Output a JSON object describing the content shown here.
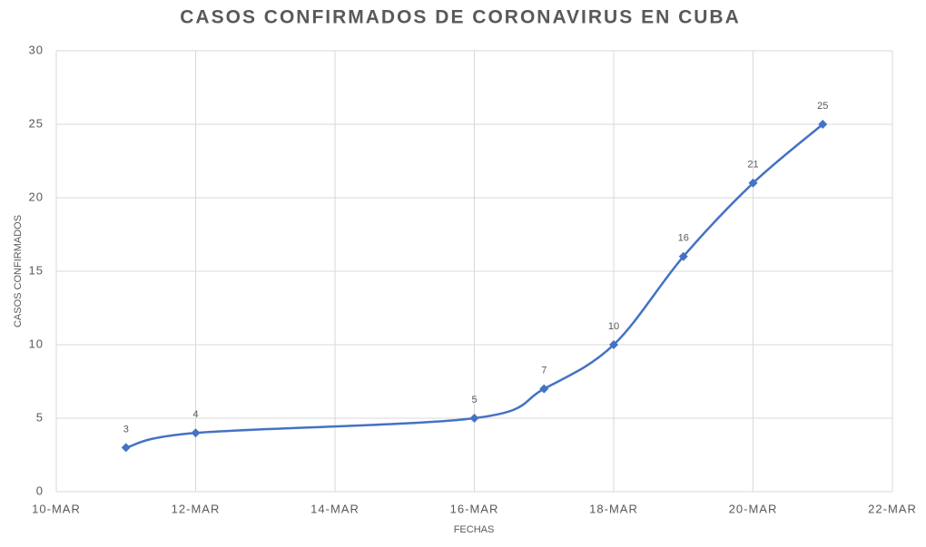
{
  "chart_data": {
    "type": "line",
    "title": "CASOS CONFIRMADOS DE CORONAVIRUS EN CUBA",
    "x_label": "FECHAS",
    "y_label": "CASOS CONFIRMADOS",
    "x": [
      11,
      12,
      16,
      17,
      18,
      19,
      20,
      21
    ],
    "series": [
      {
        "name": "Casos confirmados",
        "color": "#4472c4",
        "values": [
          3,
          4,
          5,
          7,
          10,
          16,
          21,
          25
        ]
      }
    ],
    "xlim": [
      10,
      22
    ],
    "xticks": [
      {
        "value": 10,
        "label": "10-MAR"
      },
      {
        "value": 12,
        "label": "12-MAR"
      },
      {
        "value": 14,
        "label": "14-MAR"
      },
      {
        "value": 16,
        "label": "16-MAR"
      },
      {
        "value": 18,
        "label": "18-MAR"
      },
      {
        "value": 20,
        "label": "20-MAR"
      },
      {
        "value": 22,
        "label": "22-MAR"
      }
    ],
    "ylim": [
      0,
      30
    ],
    "yticks": [
      0,
      5,
      10,
      15,
      20,
      25,
      30
    ],
    "grid": true,
    "smooth": true,
    "data_labels": true
  }
}
